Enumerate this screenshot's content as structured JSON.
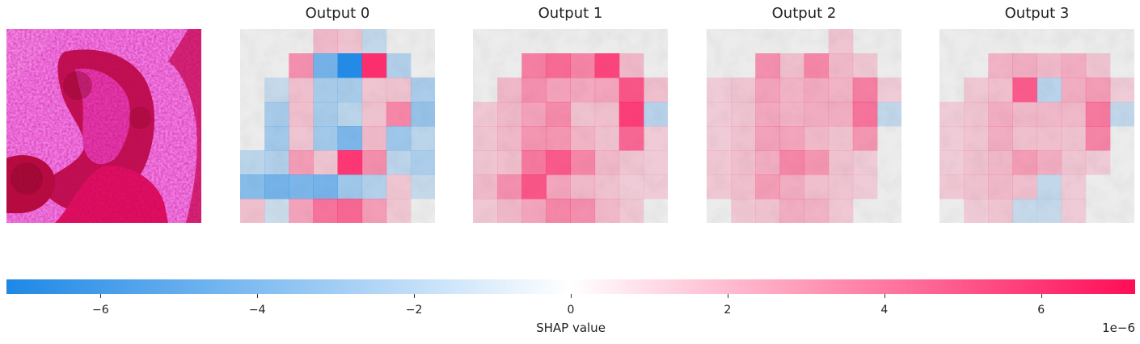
{
  "chart_data": {
    "type": "heatmap",
    "title": "",
    "panels": [
      {
        "title": ""
      },
      {
        "title": "Output 0"
      },
      {
        "title": "Output 1"
      },
      {
        "title": "Output 2"
      },
      {
        "title": "Output 3"
      }
    ],
    "colorbar": {
      "label": "SHAP value",
      "range": [
        -7.2,
        7.2
      ],
      "ticks": [
        -6,
        -4,
        -2,
        0,
        2,
        4,
        6
      ],
      "tick_labels": [
        "−6",
        "−4",
        "−2",
        "0",
        "2",
        "4",
        "6"
      ],
      "scale_label": "1e−6",
      "low_color": "#1e88e5",
      "mid_color": "#ffffff",
      "high_color": "#ff0d57"
    },
    "grid": {
      "rows": 8,
      "cols": 8
    },
    "shap_values_1e-6": [
      [
        [
          0,
          0,
          0,
          0.8,
          0.5,
          -0.6,
          0,
          0
        ],
        [
          0,
          0,
          2.2,
          -3.5,
          -6.5,
          5.5,
          -1.2,
          0
        ],
        [
          0,
          -0.5,
          0.6,
          -1.6,
          -1.6,
          0.4,
          0.5,
          -1.5
        ],
        [
          0,
          -1.6,
          0.6,
          -1.6,
          -0.9,
          0.5,
          2.5,
          -2.2
        ],
        [
          0,
          -1.8,
          0.4,
          -1.8,
          -3.2,
          0.8,
          -1.9,
          -0.9
        ],
        [
          -0.9,
          -1.2,
          1.8,
          0.4,
          5.2,
          2.3,
          -0.8,
          -1.4
        ],
        [
          -2.8,
          -3.5,
          -3.2,
          -3.4,
          -1.9,
          -1.2,
          0.4,
          -0.5
        ],
        [
          0.6,
          -0.3,
          1.6,
          3.2,
          3.6,
          1.8,
          0.3,
          0
        ]
      ],
      [
        [
          0,
          0,
          0,
          0,
          0,
          0,
          0,
          0
        ],
        [
          0,
          0,
          2.8,
          3.5,
          2.6,
          4.8,
          0.8,
          0
        ],
        [
          0,
          0.8,
          2.2,
          1.6,
          1.4,
          1.5,
          4.2,
          0.6
        ],
        [
          0.3,
          0.8,
          1.6,
          2.4,
          0.5,
          0.6,
          5.0,
          -1.0
        ],
        [
          0.4,
          0.8,
          2.0,
          2.0,
          1.0,
          0.5,
          3.6,
          0.2
        ],
        [
          0.4,
          0.6,
          3.0,
          4.0,
          2.5,
          0.8,
          0.4,
          0.2
        ],
        [
          0.8,
          2.2,
          4.2,
          1.5,
          0.8,
          0.5,
          0.2,
          0.2
        ],
        [
          0.3,
          0.8,
          1.5,
          2.5,
          2.2,
          0.8,
          0.3,
          0
        ]
      ],
      [
        [
          0,
          0,
          0,
          0,
          0,
          0.4,
          0,
          0
        ],
        [
          0,
          0,
          2.2,
          0.6,
          2.5,
          0.8,
          0.3,
          0
        ],
        [
          0.2,
          0.4,
          1.6,
          1.0,
          1.3,
          1.0,
          2.8,
          0.2
        ],
        [
          0.2,
          0.4,
          1.4,
          1.0,
          1.2,
          1.2,
          3.2,
          -0.6
        ],
        [
          0.2,
          0.5,
          1.6,
          1.5,
          0.8,
          0.5,
          2.0,
          0
        ],
        [
          0.3,
          0.6,
          1.2,
          2.5,
          2.0,
          0.5,
          0.2,
          0
        ],
        [
          0.3,
          0.6,
          1.8,
          1.2,
          0.6,
          0.4,
          0.2,
          0
        ],
        [
          0,
          0.3,
          0.5,
          1.2,
          1.0,
          0.3,
          0,
          0
        ]
      ],
      [
        [
          0,
          0,
          0,
          0,
          0,
          0,
          0,
          0
        ],
        [
          0,
          0,
          1.0,
          1.2,
          0.8,
          1.2,
          0.4,
          0
        ],
        [
          0,
          0.3,
          0.6,
          4.0,
          -1.0,
          1.2,
          1.8,
          0.2
        ],
        [
          0.2,
          0.4,
          1.2,
          0.8,
          0.8,
          0.8,
          3.0,
          -0.6
        ],
        [
          0.2,
          0.4,
          1.2,
          0.6,
          0.6,
          0.5,
          2.6,
          0
        ],
        [
          0.2,
          0.5,
          0.8,
          1.8,
          1.2,
          0.4,
          0.2,
          0
        ],
        [
          0.3,
          0.5,
          0.8,
          0.6,
          -0.6,
          0.2,
          0,
          0
        ],
        [
          0,
          0.2,
          0.4,
          -0.5,
          -0.5,
          0.2,
          0,
          0
        ]
      ]
    ]
  }
}
